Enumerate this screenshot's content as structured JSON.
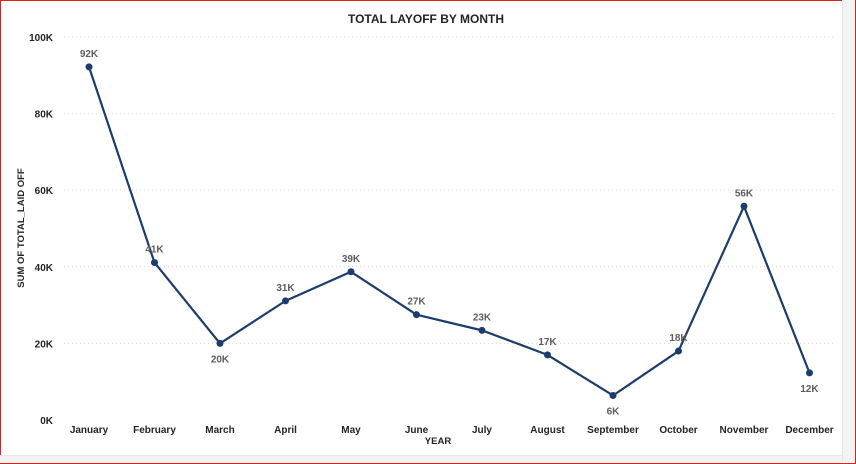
{
  "chart_data": {
    "type": "line",
    "title": "TOTAL LAYOFF BY MONTH",
    "xlabel": "YEAR",
    "ylabel": "SUM OF TOTAL_LAID OFF",
    "categories": [
      "January",
      "February",
      "March",
      "April",
      "May",
      "June",
      "July",
      "August",
      "September",
      "October",
      "November",
      "December"
    ],
    "series": [
      {
        "values": [
          92200,
          41100,
          20000,
          31100,
          38700,
          27500,
          23400,
          17000,
          6400,
          18000,
          55800,
          12300
        ],
        "data_labels": [
          "92K",
          "41K",
          "20K",
          "31K",
          "39K",
          "27K",
          "23K",
          "17K",
          "6K",
          "18K",
          "56K",
          "12K"
        ],
        "color": "#1b3d6e"
      }
    ],
    "ylim": [
      0,
      100000
    ],
    "yticks": [
      0,
      20000,
      40000,
      60000,
      80000,
      100000
    ],
    "ytick_labels": [
      "0K",
      "20K",
      "40K",
      "60K",
      "80K",
      "100K"
    ],
    "grid": true,
    "label_positions": [
      "above",
      "above",
      "below",
      "above",
      "above",
      "above",
      "above",
      "above",
      "below",
      "above",
      "above",
      "below"
    ]
  }
}
